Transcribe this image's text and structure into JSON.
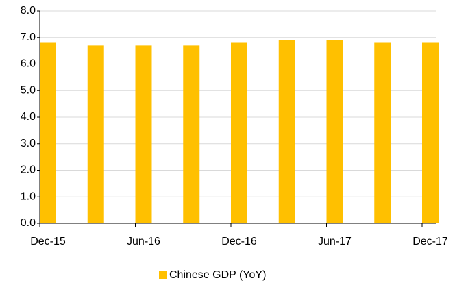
{
  "chart_data": {
    "type": "bar",
    "categories": [
      "Dec-15",
      null,
      "Jun-16",
      null,
      "Dec-16",
      null,
      "Jun-17",
      null,
      "Dec-17"
    ],
    "series": [
      {
        "name": "Chinese GDP (YoY)",
        "color": "#ffc000",
        "values": [
          6.8,
          6.7,
          6.7,
          6.7,
          6.8,
          6.9,
          6.9,
          6.8,
          6.8
        ]
      }
    ],
    "ylim": [
      0,
      8
    ],
    "yticks": [
      {
        "value": 0,
        "label": "0.0"
      },
      {
        "value": 1,
        "label": "1.0"
      },
      {
        "value": 2,
        "label": "2.0"
      },
      {
        "value": 3,
        "label": "3.0"
      },
      {
        "value": 4,
        "label": "4.0"
      },
      {
        "value": 5,
        "label": "5.0"
      },
      {
        "value": 6,
        "label": "6.0"
      },
      {
        "value": 7,
        "label": "7.0"
      },
      {
        "value": 8,
        "label": "8.0"
      }
    ],
    "grid": true,
    "legend": "bottom"
  }
}
